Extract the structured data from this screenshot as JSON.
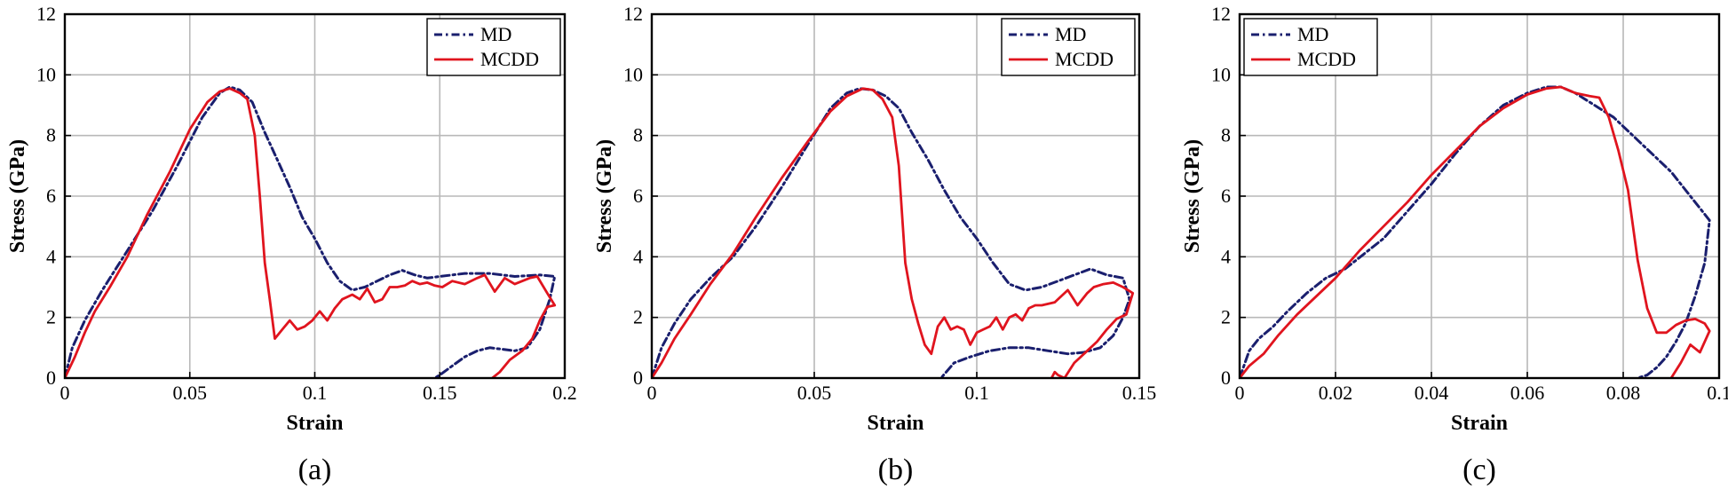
{
  "chart_data": [
    {
      "type": "line",
      "panel_label": "(a)",
      "xlabel": "Strain",
      "ylabel": "Stress (GPa)",
      "xlim": [
        0,
        0.2
      ],
      "ylim": [
        0,
        12
      ],
      "xticks": [
        0,
        0.05,
        0.1,
        0.15,
        0.2
      ],
      "xtick_labels": [
        "0",
        "0.05",
        "0.1",
        "0.15",
        "0.2"
      ],
      "yticks": [
        0,
        2,
        4,
        6,
        8,
        10,
        12
      ],
      "ytick_labels": [
        "0",
        "2",
        "4",
        "6",
        "8",
        "10",
        "12"
      ],
      "grid": true,
      "legend_position": "top-right",
      "series": [
        {
          "name": "MD",
          "color": "#1a1f6e",
          "style": "dashdot",
          "x": [
            0,
            0.003,
            0.008,
            0.015,
            0.025,
            0.035,
            0.045,
            0.055,
            0.062,
            0.066,
            0.07,
            0.075,
            0.08,
            0.085,
            0.09,
            0.095,
            0.1,
            0.105,
            0.11,
            0.115,
            0.12,
            0.13,
            0.135,
            0.14,
            0.145,
            0.15,
            0.16,
            0.17,
            0.18,
            0.19,
            0.196,
            0.194,
            0.19,
            0.185,
            0.18,
            0.175,
            0.17,
            0.165,
            0.16,
            0.155,
            0.15,
            0.148
          ],
          "y": [
            0,
            1.0,
            1.9,
            2.9,
            4.2,
            5.5,
            7.0,
            8.6,
            9.4,
            9.6,
            9.5,
            9.1,
            8.1,
            7.2,
            6.3,
            5.3,
            4.6,
            3.8,
            3.2,
            2.9,
            3.0,
            3.4,
            3.55,
            3.4,
            3.3,
            3.35,
            3.45,
            3.45,
            3.35,
            3.4,
            3.35,
            2.6,
            1.6,
            1.0,
            0.9,
            0.95,
            1.0,
            0.9,
            0.7,
            0.4,
            0.1,
            0
          ]
        },
        {
          "name": "MCDD",
          "color": "#e0141e",
          "style": "solid",
          "x": [
            0,
            0.004,
            0.008,
            0.012,
            0.018,
            0.025,
            0.033,
            0.042,
            0.05,
            0.057,
            0.062,
            0.066,
            0.07,
            0.073,
            0.076,
            0.078,
            0.08,
            0.082,
            0.084,
            0.087,
            0.09,
            0.093,
            0.096,
            0.099,
            0.102,
            0.105,
            0.108,
            0.111,
            0.115,
            0.118,
            0.121,
            0.124,
            0.127,
            0.13,
            0.133,
            0.136,
            0.139,
            0.142,
            0.145,
            0.148,
            0.151,
            0.155,
            0.16,
            0.165,
            0.168,
            0.172,
            0.176,
            0.18,
            0.183,
            0.186,
            0.189,
            0.193,
            0.196,
            0.193,
            0.19,
            0.187,
            0.183,
            0.178,
            0.174,
            0.171
          ],
          "y": [
            0,
            0.7,
            1.5,
            2.2,
            3.0,
            4.0,
            5.4,
            6.8,
            8.2,
            9.1,
            9.45,
            9.55,
            9.4,
            9.2,
            8.0,
            6.0,
            3.8,
            2.6,
            1.3,
            1.6,
            1.9,
            1.6,
            1.7,
            1.9,
            2.2,
            1.9,
            2.3,
            2.6,
            2.75,
            2.6,
            2.95,
            2.5,
            2.6,
            3.0,
            3.0,
            3.05,
            3.2,
            3.1,
            3.15,
            3.05,
            3.0,
            3.2,
            3.1,
            3.3,
            3.4,
            2.85,
            3.3,
            3.1,
            3.2,
            3.3,
            3.35,
            2.8,
            2.4,
            2.35,
            1.9,
            1.3,
            0.9,
            0.6,
            0.2,
            0
          ]
        }
      ]
    },
    {
      "type": "line",
      "panel_label": "(b)",
      "xlabel": "Strain",
      "ylabel": "Stress (GPa)",
      "xlim": [
        0,
        0.15
      ],
      "ylim": [
        0,
        12
      ],
      "xticks": [
        0,
        0.05,
        0.1,
        0.15
      ],
      "xtick_labels": [
        "0",
        "0.05",
        "0.1",
        "0.15"
      ],
      "yticks": [
        0,
        2,
        4,
        6,
        8,
        10,
        12
      ],
      "ytick_labels": [
        "0",
        "2",
        "4",
        "6",
        "8",
        "10",
        "12"
      ],
      "grid": true,
      "legend_position": "top-right",
      "series": [
        {
          "name": "MD",
          "color": "#1a1f6e",
          "style": "dashdot",
          "x": [
            0,
            0.003,
            0.007,
            0.012,
            0.018,
            0.025,
            0.032,
            0.04,
            0.048,
            0.055,
            0.06,
            0.064,
            0.068,
            0.072,
            0.076,
            0.08,
            0.085,
            0.09,
            0.095,
            0.1,
            0.105,
            0.11,
            0.115,
            0.12,
            0.125,
            0.13,
            0.135,
            0.14,
            0.145,
            0.147,
            0.145,
            0.142,
            0.138,
            0.133,
            0.128,
            0.122,
            0.116,
            0.11,
            0.104,
            0.098,
            0.093,
            0.089
          ],
          "y": [
            0,
            1.0,
            1.8,
            2.6,
            3.3,
            4.0,
            5.0,
            6.3,
            7.7,
            8.9,
            9.4,
            9.55,
            9.5,
            9.3,
            8.9,
            8.1,
            7.2,
            6.2,
            5.3,
            4.6,
            3.8,
            3.1,
            2.9,
            3.0,
            3.2,
            3.4,
            3.6,
            3.4,
            3.3,
            2.6,
            2.0,
            1.4,
            1.0,
            0.85,
            0.8,
            0.9,
            1.0,
            1.0,
            0.9,
            0.7,
            0.5,
            0
          ]
        },
        {
          "name": "MCDD",
          "color": "#e0141e",
          "style": "solid",
          "x": [
            0,
            0.003,
            0.007,
            0.012,
            0.018,
            0.025,
            0.032,
            0.04,
            0.048,
            0.055,
            0.06,
            0.065,
            0.068,
            0.071,
            0.074,
            0.076,
            0.078,
            0.08,
            0.082,
            0.084,
            0.086,
            0.088,
            0.09,
            0.092,
            0.094,
            0.096,
            0.098,
            0.1,
            0.102,
            0.104,
            0.106,
            0.108,
            0.11,
            0.112,
            0.114,
            0.116,
            0.118,
            0.12,
            0.124,
            0.128,
            0.131,
            0.134,
            0.136,
            0.139,
            0.142,
            0.145,
            0.148,
            0.146,
            0.143,
            0.14,
            0.137,
            0.134,
            0.13,
            0.127,
            0.125,
            0.124,
            0.123
          ],
          "y": [
            0,
            0.5,
            1.3,
            2.1,
            3.1,
            4.1,
            5.3,
            6.6,
            7.8,
            8.8,
            9.3,
            9.55,
            9.5,
            9.2,
            8.6,
            7.0,
            3.8,
            2.6,
            1.8,
            1.1,
            0.8,
            1.7,
            2.0,
            1.6,
            1.7,
            1.6,
            1.1,
            1.5,
            1.6,
            1.7,
            2.0,
            1.6,
            2.0,
            2.1,
            1.9,
            2.3,
            2.4,
            2.4,
            2.5,
            2.9,
            2.4,
            2.8,
            3.0,
            3.1,
            3.15,
            3.0,
            2.8,
            2.1,
            1.95,
            1.6,
            1.2,
            0.9,
            0.5,
            0.0,
            0.1,
            0.2,
            0
          ]
        }
      ]
    },
    {
      "type": "line",
      "panel_label": "(c)",
      "xlabel": "Strain",
      "ylabel": "Stress (GPa)",
      "xlim": [
        0,
        0.1
      ],
      "ylim": [
        0,
        12
      ],
      "xticks": [
        0,
        0.02,
        0.04,
        0.06,
        0.08,
        0.1
      ],
      "xtick_labels": [
        "0",
        "0.02",
        "0.04",
        "0.06",
        "0.08",
        "0.1"
      ],
      "yticks": [
        0,
        2,
        4,
        6,
        8,
        10,
        12
      ],
      "ytick_labels": [
        "0",
        "2",
        "4",
        "6",
        "8",
        "10",
        "12"
      ],
      "grid": true,
      "legend_position": "top-left",
      "series": [
        {
          "name": "MD",
          "color": "#1a1f6e",
          "style": "dashdot",
          "x": [
            0,
            0.002,
            0.004,
            0.007,
            0.01,
            0.014,
            0.018,
            0.022,
            0.026,
            0.03,
            0.035,
            0.04,
            0.045,
            0.05,
            0.055,
            0.06,
            0.064,
            0.067,
            0.07,
            0.074,
            0.078,
            0.082,
            0.086,
            0.09,
            0.094,
            0.098,
            0.097,
            0.095,
            0.093,
            0.091,
            0.089,
            0.087,
            0.085,
            0.083
          ],
          "y": [
            0,
            0.9,
            1.3,
            1.7,
            2.2,
            2.8,
            3.3,
            3.6,
            4.1,
            4.6,
            5.5,
            6.4,
            7.4,
            8.3,
            9.0,
            9.4,
            9.6,
            9.6,
            9.4,
            9.0,
            8.6,
            8.0,
            7.4,
            6.8,
            6.0,
            5.2,
            3.8,
            2.7,
            1.8,
            1.2,
            0.7,
            0.35,
            0.1,
            0
          ]
        },
        {
          "name": "MCDD",
          "color": "#e0141e",
          "style": "solid",
          "x": [
            0,
            0.002,
            0.005,
            0.008,
            0.012,
            0.016,
            0.02,
            0.025,
            0.03,
            0.035,
            0.04,
            0.045,
            0.05,
            0.055,
            0.06,
            0.064,
            0.067,
            0.07,
            0.073,
            0.075,
            0.077,
            0.079,
            0.081,
            0.083,
            0.085,
            0.087,
            0.089,
            0.091,
            0.093,
            0.095,
            0.097,
            0.098,
            0.096,
            0.094,
            0.092,
            0.09
          ],
          "y": [
            0,
            0.4,
            0.8,
            1.4,
            2.1,
            2.7,
            3.3,
            4.2,
            5.0,
            5.8,
            6.7,
            7.5,
            8.3,
            8.9,
            9.35,
            9.55,
            9.6,
            9.4,
            9.3,
            9.25,
            8.6,
            7.5,
            6.2,
            3.9,
            2.3,
            1.5,
            1.5,
            1.75,
            1.9,
            1.95,
            1.8,
            1.55,
            0.85,
            1.1,
            0.5,
            0
          ]
        }
      ]
    }
  ]
}
